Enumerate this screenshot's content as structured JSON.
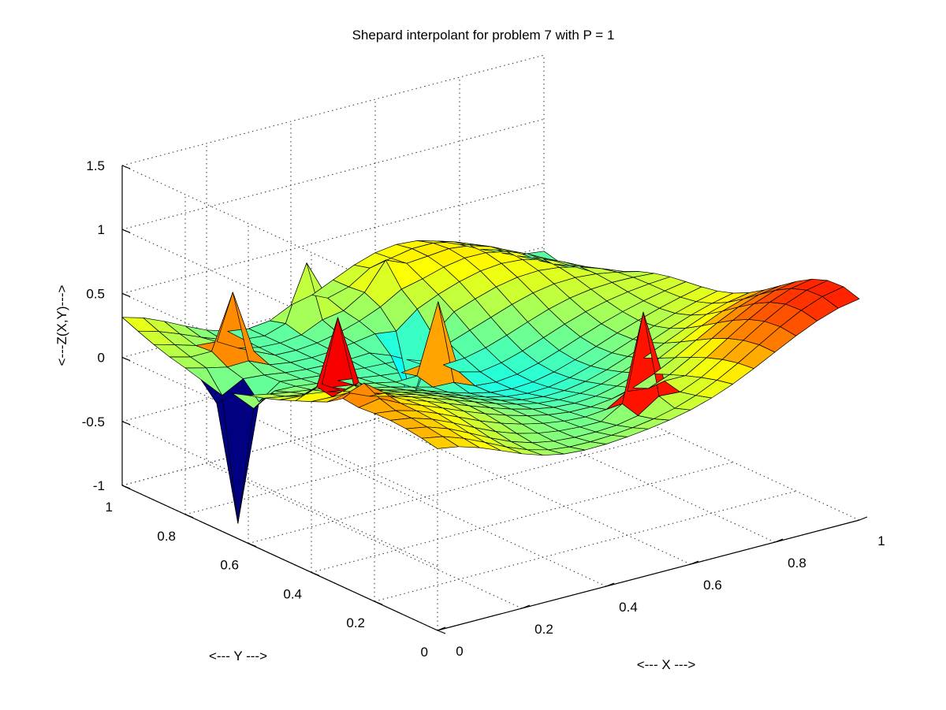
{
  "chart_data": {
    "type": "surface",
    "title": "Shepard interpolant for problem 7 with P = 1",
    "xlabel": "<--- X --->",
    "ylabel": "<--- Y --->",
    "zlabel": "<---Z(X,Y)--->",
    "xlim": [
      0,
      1
    ],
    "ylim": [
      0,
      1
    ],
    "zlim": [
      -1,
      1.5
    ],
    "x_ticks": [
      "0",
      "0.2",
      "0.4",
      "0.6",
      "0.8",
      "1"
    ],
    "y_ticks": [
      "0",
      "0.2",
      "0.4",
      "0.6",
      "0.8",
      "1"
    ],
    "z_ticks": [
      "-1",
      "-0.5",
      "0",
      "0.5",
      "1",
      "1.5"
    ],
    "grid": true,
    "colormap": "jet",
    "clim": [
      -1,
      1.1
    ],
    "mesh_resolution": 21,
    "description_of_shape": "rippled surface between about -0.5 and 0.9 with several sharp data-point spikes",
    "spikes": [
      {
        "x": 0.05,
        "y": 0.7,
        "z": -1.0
      },
      {
        "x": 0.1,
        "y": 0.45,
        "z": 0.85
      },
      {
        "x": 0.6,
        "y": 0.15,
        "z": 0.8
      },
      {
        "x": 0.45,
        "y": 0.6,
        "z": 0.5
      },
      {
        "x": 0.15,
        "y": 0.85,
        "z": 0.55
      },
      {
        "x": 0.05,
        "y": 0.3,
        "z": 0.55
      },
      {
        "x": 0.55,
        "y": 0.9,
        "z": 0.4
      },
      {
        "x": 0.4,
        "y": 0.95,
        "z": 0.45
      },
      {
        "x": 0.5,
        "y": 0.75,
        "z": -0.5
      }
    ]
  }
}
